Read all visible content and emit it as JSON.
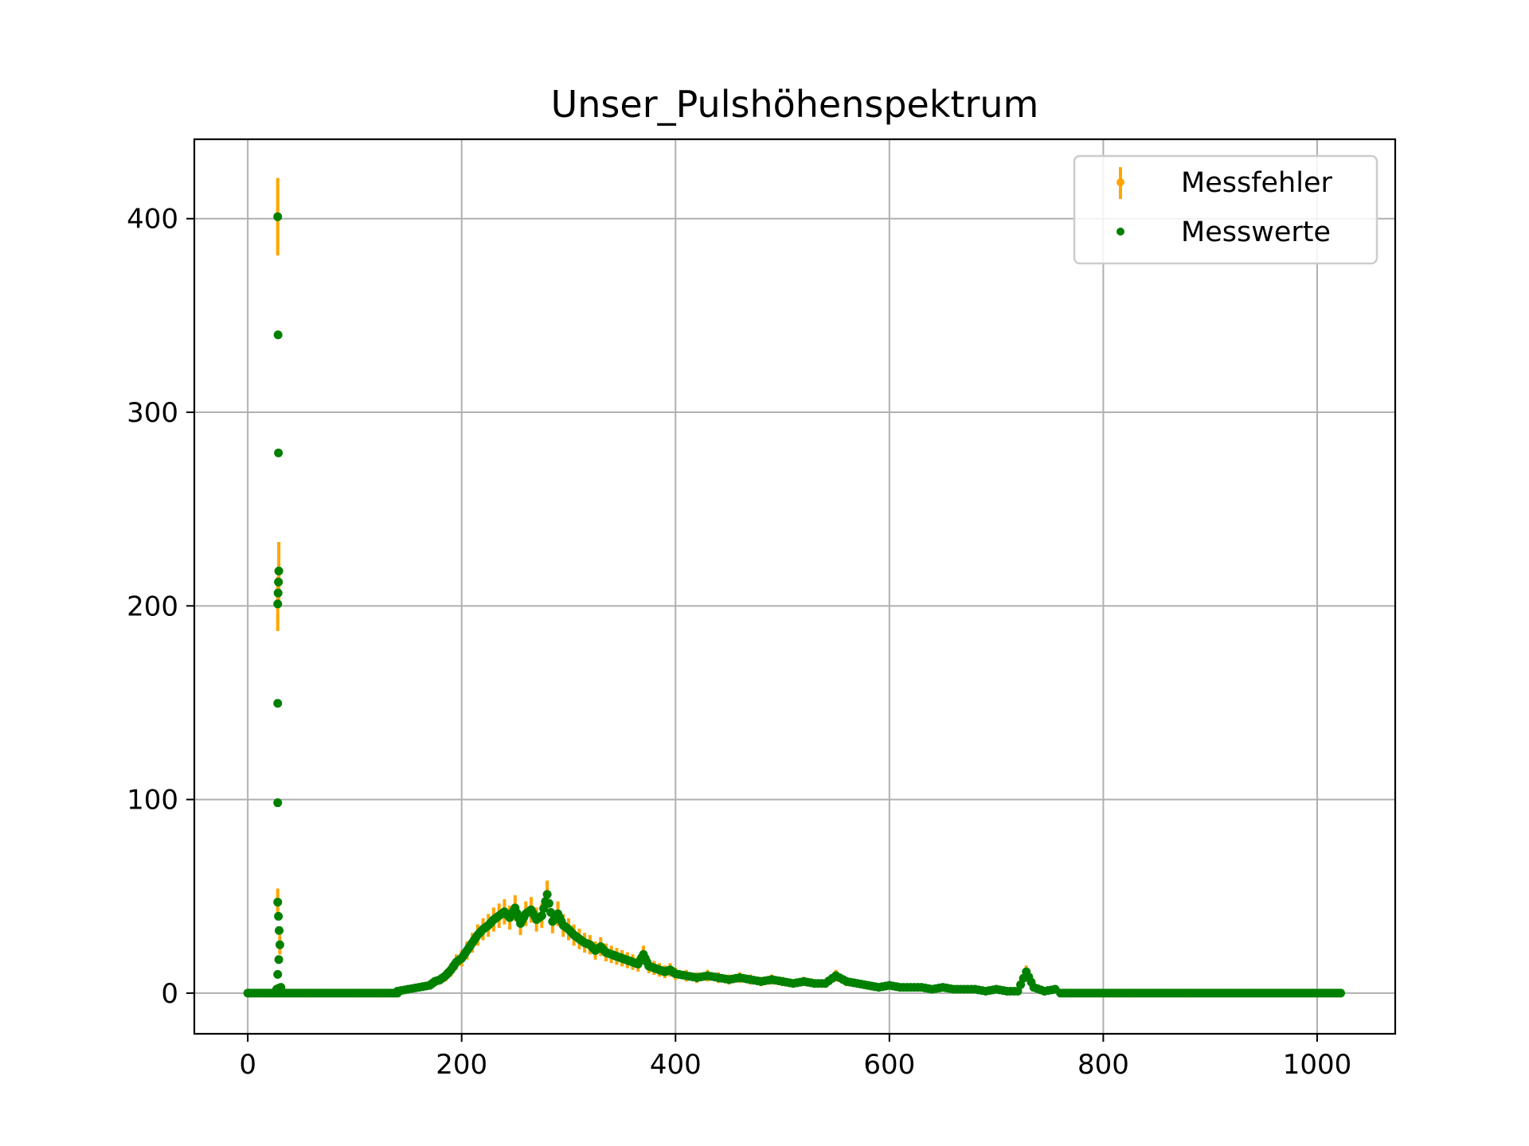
{
  "chart_data": {
    "type": "scatter",
    "title": "Unser_Pulshöhenspektrum",
    "xlabel": "",
    "ylabel": "",
    "xlim": [
      -50,
      1073
    ],
    "ylim": [
      -21,
      441
    ],
    "xticks": [
      0,
      200,
      400,
      600,
      800,
      1000
    ],
    "yticks": [
      0,
      100,
      200,
      300,
      400
    ],
    "grid": true,
    "legend_position": "top-right",
    "colors": {
      "errorbar": "#ffa500",
      "points": "#008000",
      "grid": "#b0b0b0"
    },
    "series": [
      {
        "name": "Messfehler",
        "kind": "errorbar",
        "color": "#ffa500"
      },
      {
        "name": "Messwerte",
        "kind": "points",
        "color": "#008000"
      }
    ],
    "points": [
      [
        28,
        401,
        20
      ],
      [
        29,
        218,
        15
      ],
      [
        28,
        201,
        14
      ],
      [
        28,
        47,
        7
      ],
      [
        30,
        25,
        5
      ],
      [
        27,
        2,
        1.4
      ],
      [
        31,
        3,
        1.7
      ],
      [
        140,
        1,
        1
      ],
      [
        150,
        2,
        1.4
      ],
      [
        160,
        3,
        1.7
      ],
      [
        170,
        4,
        2
      ],
      [
        175,
        6,
        2.4
      ],
      [
        180,
        7,
        2.6
      ],
      [
        185,
        9,
        3
      ],
      [
        190,
        12,
        3.5
      ],
      [
        195,
        16,
        4
      ],
      [
        200,
        18,
        4.2
      ],
      [
        205,
        22,
        4.7
      ],
      [
        210,
        26,
        5.1
      ],
      [
        215,
        30,
        5.5
      ],
      [
        220,
        33,
        5.7
      ],
      [
        225,
        35,
        5.9
      ],
      [
        230,
        38,
        6.2
      ],
      [
        235,
        40,
        6.3
      ],
      [
        240,
        42,
        6.5
      ],
      [
        245,
        39,
        6.2
      ],
      [
        250,
        44,
        6.6
      ],
      [
        255,
        36,
        6
      ],
      [
        260,
        41,
        6.4
      ],
      [
        265,
        43,
        6.6
      ],
      [
        270,
        38,
        6.2
      ],
      [
        275,
        40,
        6.3
      ],
      [
        280,
        51,
        7.1
      ],
      [
        285,
        37,
        6.1
      ],
      [
        290,
        41,
        6.4
      ],
      [
        295,
        35,
        5.9
      ],
      [
        300,
        33,
        5.7
      ],
      [
        305,
        30,
        5.5
      ],
      [
        310,
        28,
        5.3
      ],
      [
        315,
        26,
        5.1
      ],
      [
        320,
        25,
        5
      ],
      [
        325,
        22,
        4.7
      ],
      [
        330,
        24,
        4.9
      ],
      [
        335,
        21,
        4.6
      ],
      [
        340,
        20,
        4.5
      ],
      [
        345,
        19,
        4.4
      ],
      [
        350,
        18,
        4.2
      ],
      [
        355,
        17,
        4.1
      ],
      [
        360,
        16,
        4
      ],
      [
        365,
        15,
        3.9
      ],
      [
        370,
        20,
        4.5
      ],
      [
        375,
        14,
        3.7
      ],
      [
        380,
        13,
        3.6
      ],
      [
        385,
        12,
        3.5
      ],
      [
        390,
        11,
        3.3
      ],
      [
        395,
        12,
        3.5
      ],
      [
        400,
        10,
        3.2
      ],
      [
        410,
        9,
        3
      ],
      [
        420,
        8,
        2.8
      ],
      [
        430,
        9,
        3
      ],
      [
        440,
        8,
        2.8
      ],
      [
        450,
        7,
        2.6
      ],
      [
        460,
        8,
        2.8
      ],
      [
        470,
        7,
        2.6
      ],
      [
        480,
        6,
        2.4
      ],
      [
        490,
        7,
        2.6
      ],
      [
        500,
        6,
        2.4
      ],
      [
        510,
        5,
        2.2
      ],
      [
        520,
        6,
        2.4
      ],
      [
        530,
        5,
        2.2
      ],
      [
        540,
        5,
        2.2
      ],
      [
        550,
        9,
        3
      ],
      [
        560,
        6,
        2.4
      ],
      [
        570,
        5,
        2.2
      ],
      [
        580,
        4,
        2
      ],
      [
        590,
        3,
        1.7
      ],
      [
        600,
        4,
        2
      ],
      [
        610,
        3,
        1.7
      ],
      [
        620,
        3,
        1.7
      ],
      [
        630,
        3,
        1.7
      ],
      [
        640,
        2,
        1.4
      ],
      [
        650,
        3,
        1.7
      ],
      [
        660,
        2,
        1.4
      ],
      [
        670,
        2,
        1.4
      ],
      [
        680,
        2,
        1.4
      ],
      [
        690,
        1,
        1
      ],
      [
        700,
        2,
        1.4
      ],
      [
        710,
        1,
        1
      ],
      [
        720,
        1,
        1
      ],
      [
        728,
        11,
        3.3
      ],
      [
        735,
        3,
        1.7
      ],
      [
        745,
        1,
        1
      ],
      [
        755,
        2,
        1.4
      ]
    ]
  }
}
